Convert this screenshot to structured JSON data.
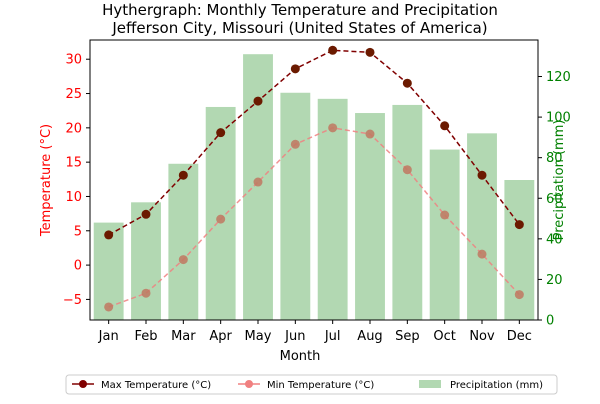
{
  "chart_data": {
    "type": "bar+line",
    "title_line1": "Hythergraph: Monthly Temperature and Precipitation",
    "title_line2": "Jefferson City, Missouri (United States of America)",
    "xlabel": "Month",
    "ylabel_left": "Temperature (°C)",
    "ylabel_right": "Precipitation (mm)",
    "categories": [
      "Jan",
      "Feb",
      "Mar",
      "Apr",
      "May",
      "Jun",
      "Jul",
      "Aug",
      "Sep",
      "Oct",
      "Nov",
      "Dec"
    ],
    "left_axis": {
      "ylim": [
        -8,
        32.8
      ],
      "ticks": [
        -5,
        0,
        5,
        10,
        15,
        20,
        25,
        30
      ]
    },
    "right_axis": {
      "ylim": [
        0,
        138
      ],
      "ticks": [
        0,
        20,
        40,
        60,
        80,
        100,
        120
      ]
    },
    "series": [
      {
        "name": "Max Temperature (°C)",
        "kind": "line",
        "axis": "left",
        "color": "#800000",
        "values": [
          4.4,
          7.4,
          13.1,
          19.3,
          23.9,
          28.6,
          31.3,
          31.0,
          26.5,
          20.3,
          13.1,
          5.9
        ]
      },
      {
        "name": "Min Temperature (°C)",
        "kind": "line",
        "axis": "left",
        "color": "#f08080",
        "values": [
          -6.1,
          -4.1,
          0.8,
          6.7,
          12.1,
          17.6,
          20.0,
          19.1,
          13.9,
          7.3,
          1.6,
          -4.3
        ]
      },
      {
        "name": "Precipitation (mm)",
        "kind": "bar",
        "axis": "right",
        "color": "#b2d8b2",
        "values": [
          48,
          58,
          77,
          105,
          131,
          112,
          109,
          102,
          106,
          84,
          92,
          69
        ]
      }
    ],
    "legend_position": "bottom-center",
    "left_axis_color": "#ff0000",
    "right_axis_color": "#008000"
  }
}
